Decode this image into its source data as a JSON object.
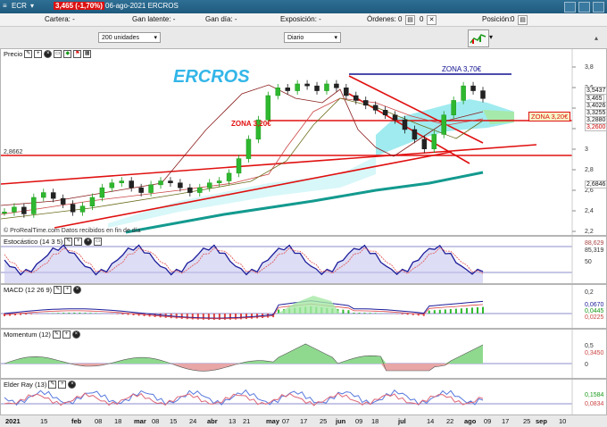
{
  "titlebar": {
    "ticker": "ECR",
    "price_change": "3,465 (-1,70%)",
    "date_name": "06-ago-2021 ERCROS"
  },
  "infobar": {
    "cartera": "Cartera: -",
    "gan_latente": "Gan latente: -",
    "gan_dia": "Gan día: -",
    "exposicion": "Exposición: -",
    "ordenes": "Órdenes:",
    "ordenes_val": "0",
    "ordenes_val2": "0",
    "posicion": "Posición:",
    "posicion_val": "0"
  },
  "toolbar": {
    "units": "200 unidades",
    "period": "Diario"
  },
  "price_panel": {
    "title": "Precio",
    "watermark": "ERCROS",
    "zona_top": "ZONA 3,70€",
    "zona_left": "ZONA 3,20€",
    "zona_right": "ZONA 3,20€",
    "level_left": "2,8662",
    "footer": "© ProRealTime.com Datos recibidos en fin de día",
    "yaxis": [
      "3,8",
      "3,6",
      "3,4",
      "3,2",
      "3",
      "2,8",
      "2,6",
      "2,4",
      "2,2"
    ],
    "tags": [
      {
        "text": "3,5437",
        "color": "#ffffff",
        "fg": "#111"
      },
      {
        "text": "3,465",
        "color": "#ffffff",
        "fg": "#111"
      },
      {
        "text": "3,4026",
        "color": "#ffffff",
        "fg": "#111"
      },
      {
        "text": "3,3255",
        "color": "#ffffff",
        "fg": "#111"
      },
      {
        "text": "3,2880",
        "color": "#ffffff",
        "fg": "#111"
      },
      {
        "text": "3,2600",
        "color": "#ffffff",
        "fg": "#c00"
      },
      {
        "text": "2,6846",
        "color": "#ffffff",
        "fg": "#111"
      }
    ]
  },
  "stoch_panel": {
    "title": "Estocástico (14 3 5)",
    "yaxis": [
      "88,629",
      "85,319",
      "50"
    ]
  },
  "macd_panel": {
    "title": "MACD (12 26 9)",
    "yaxis": [
      "0,2",
      "0,0670",
      "0,0445",
      "0,0225"
    ]
  },
  "mom_panel": {
    "title": "Momentum (12)",
    "yaxis": [
      "0,5",
      "0,3450",
      "0"
    ]
  },
  "elder_panel": {
    "title": "Elder Ray (13)",
    "yaxis": [
      "0,1584",
      "0,0834"
    ]
  },
  "xaxis": [
    "2021",
    "15",
    "feb",
    "08",
    "18",
    "mar",
    "08",
    "15",
    "24",
    "abr",
    "13",
    "21",
    "may",
    "07",
    "17",
    "25",
    "jun",
    "09",
    "18",
    "jul",
    "14",
    "22",
    "ago",
    "09",
    "17",
    "25",
    "sep",
    "10"
  ],
  "colors": {
    "up": "#1a9a1a",
    "down": "#1a1a1a",
    "red": "#e01010",
    "navy": "#101090",
    "teal": "#139a8f",
    "cloud": "#7fe3e8",
    "stoch": "#1c1c9a"
  },
  "chart_data": {
    "type": "candlestick",
    "title": "ERCROS",
    "period": "Diario",
    "y_range": [
      2.1,
      3.85
    ],
    "annotations": [
      "ZONA 3,70€",
      "ZONA 3,20€",
      "ZONA 3,20€",
      "2,8662"
    ],
    "close": [
      2.3,
      2.35,
      2.28,
      2.45,
      2.5,
      2.44,
      2.38,
      2.3,
      2.36,
      2.45,
      2.55,
      2.6,
      2.62,
      2.55,
      2.5,
      2.58,
      2.62,
      2.6,
      2.55,
      2.5,
      2.55,
      2.6,
      2.62,
      2.7,
      2.85,
      3.05,
      3.25,
      3.5,
      3.58,
      3.55,
      3.62,
      3.6,
      3.55,
      3.62,
      3.58,
      3.5,
      3.45,
      3.4,
      3.35,
      3.3,
      3.25,
      3.15,
      3.05,
      2.95,
      3.1,
      3.3,
      3.45,
      3.6,
      3.55,
      3.47
    ]
  }
}
